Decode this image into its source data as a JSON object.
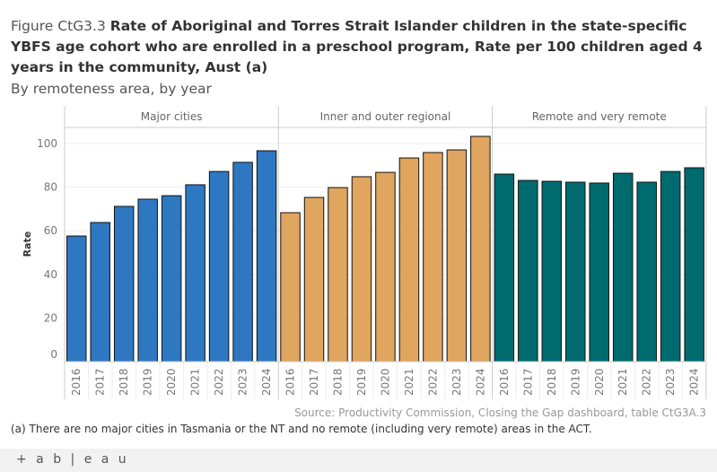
{
  "title": {
    "prefix": "Figure CtG3.3",
    "main": "Rate of Aboriginal and Torres Strait Islander children in the state-specific YBFS age cohort who are enrolled in a preschool program, Rate per 100 children aged 4 years in the community, Aust (a)"
  },
  "subtitle": "By remoteness area, by year",
  "source": "Source: Productivity Commission, Closing the Gap dashboard, table CtG3A.3",
  "note": "(a) There are no major cities in Tasmania or the NT and no remote (including very remote) areas in the ACT.",
  "logo": "+ a b | e a u",
  "chart_data": {
    "type": "bar",
    "ylabel": "Rate",
    "xlabel": "",
    "ylim": [
      0,
      107
    ],
    "yticks": [
      0,
      20,
      40,
      60,
      80,
      100
    ],
    "grid": true,
    "categories": [
      "2016",
      "2017",
      "2018",
      "2019",
      "2020",
      "2021",
      "2022",
      "2023",
      "2024"
    ],
    "series": [
      {
        "name": "Major cities",
        "color": "#2e78c2",
        "values": [
          57.6,
          63.8,
          71.2,
          74.5,
          76.1,
          81.1,
          87.2,
          91.4,
          96.7
        ]
      },
      {
        "name": "Inner and outer regional",
        "color": "#e0a55e",
        "values": [
          68.3,
          75.3,
          79.8,
          84.8,
          86.8,
          93.4,
          95.9,
          97.1,
          103.3
        ]
      },
      {
        "name": "Remote and very remote",
        "color": "#006b6e",
        "values": [
          86.0,
          83.1,
          82.7,
          82.3,
          81.9,
          86.4,
          82.3,
          87.2,
          88.9
        ]
      }
    ]
  }
}
